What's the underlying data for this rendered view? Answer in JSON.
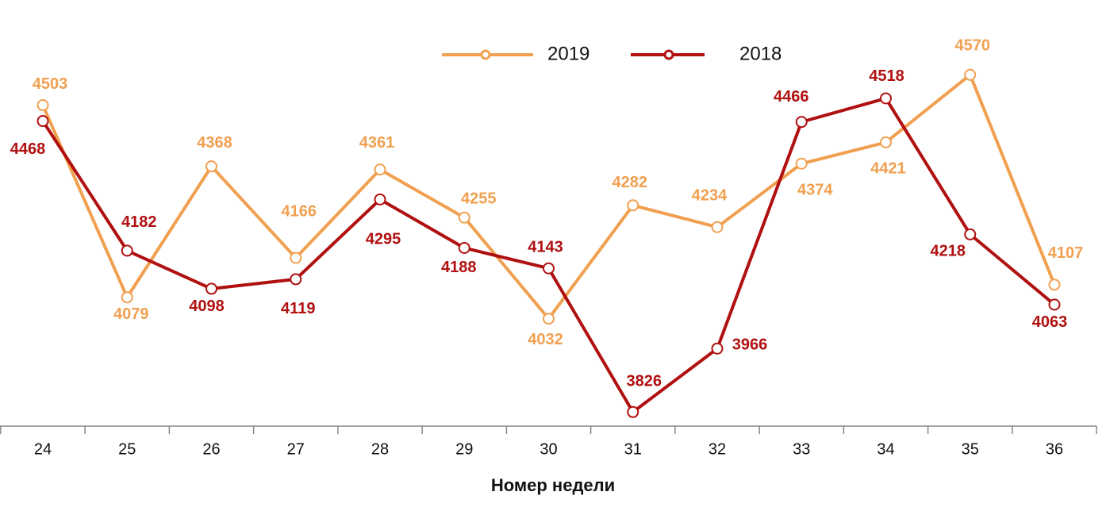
{
  "chart_data": {
    "type": "line",
    "x_label": "Номер недели",
    "categories": [
      24,
      25,
      26,
      27,
      28,
      29,
      30,
      31,
      32,
      33,
      34,
      35,
      36
    ],
    "series": [
      {
        "name": "2019",
        "color": "#f0a050",
        "values": [
          4503,
          4079,
          4368,
          4166,
          4361,
          4255,
          4032,
          4282,
          4234,
          4374,
          4421,
          4570,
          4107
        ]
      },
      {
        "name": "2018",
        "color": "#b01010",
        "values": [
          4468,
          4182,
          4098,
          4119,
          4295,
          4188,
          4143,
          3826,
          3966,
          4466,
          4518,
          4218,
          4063
        ]
      }
    ],
    "ylim": [
      3795,
      4735
    ],
    "legend": "top",
    "grid": false
  }
}
